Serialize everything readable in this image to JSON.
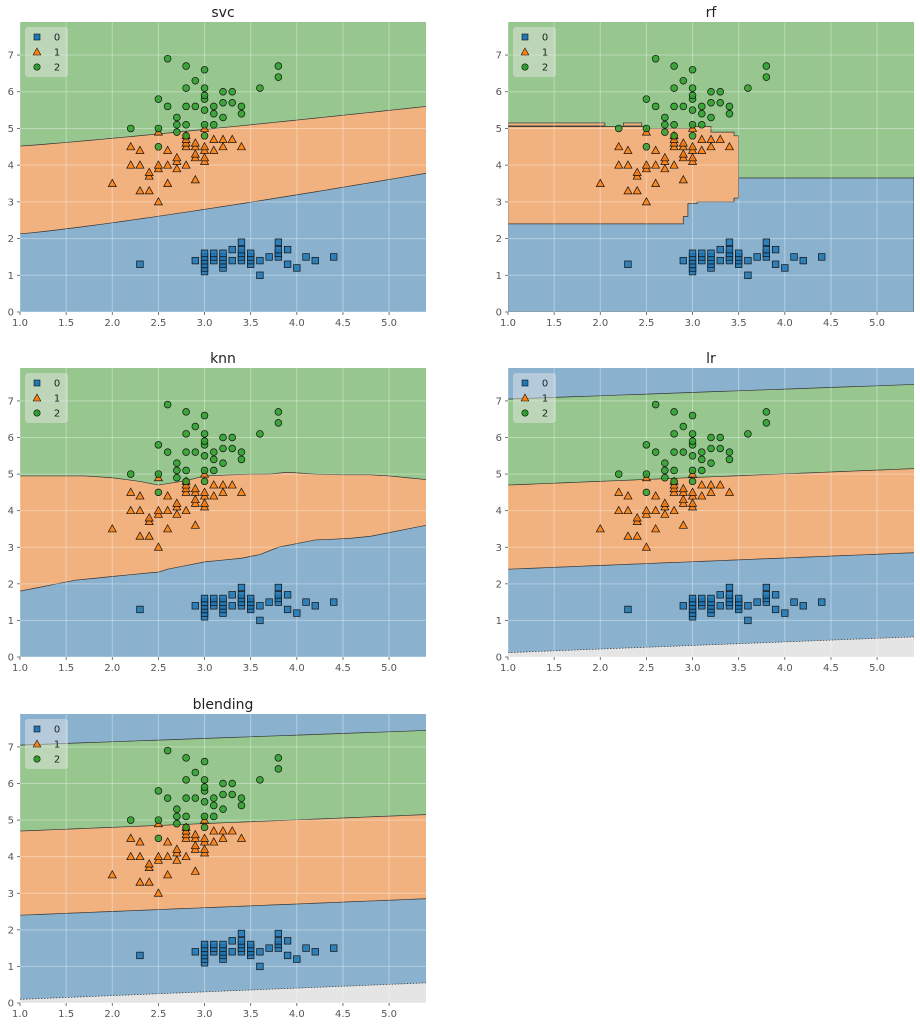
{
  "chart_data": {
    "type": "scatter",
    "description_free": true,
    "xlim": [
      1.0,
      5.4
    ],
    "ylim": [
      0,
      7.9
    ],
    "xticks": [
      1.0,
      1.5,
      2.0,
      2.5,
      3.0,
      3.5,
      4.0,
      4.5,
      5.0
    ],
    "xtick_labels": [
      "1.0",
      "1.5",
      "2.0",
      "2.5",
      "3.0",
      "3.5",
      "4.0",
      "4.5",
      "5.0"
    ],
    "yticks": [
      0,
      1,
      2,
      3,
      4,
      5,
      6,
      7
    ],
    "ytick_labels": [
      "0",
      "1",
      "2",
      "3",
      "4",
      "5",
      "6",
      "7"
    ],
    "legend": {
      "position": "top-left",
      "entries": [
        {
          "label": "0",
          "marker": "square"
        },
        {
          "label": "1",
          "marker": "triangle"
        },
        {
          "label": "2",
          "marker": "circle"
        }
      ]
    },
    "colors": {
      "class0": "#1f77b4",
      "class1": "#ff7f0e",
      "class2": "#2ca02c",
      "region0": "#8ab2cf",
      "region1": "#f1b27f",
      "region2": "#97c78e",
      "outside": "#e5e5e5"
    },
    "series": [
      {
        "name": "0",
        "points": [
          [
            2.3,
            1.3
          ],
          [
            2.9,
            1.4
          ],
          [
            3.0,
            1.1
          ],
          [
            3.0,
            1.2
          ],
          [
            3.0,
            1.3
          ],
          [
            3.0,
            1.4
          ],
          [
            3.0,
            1.5
          ],
          [
            3.0,
            1.6
          ],
          [
            3.1,
            1.4
          ],
          [
            3.1,
            1.5
          ],
          [
            3.1,
            1.6
          ],
          [
            3.2,
            1.2
          ],
          [
            3.2,
            1.3
          ],
          [
            3.2,
            1.4
          ],
          [
            3.2,
            1.5
          ],
          [
            3.2,
            1.6
          ],
          [
            3.3,
            1.4
          ],
          [
            3.3,
            1.7
          ],
          [
            3.4,
            1.4
          ],
          [
            3.4,
            1.5
          ],
          [
            3.4,
            1.6
          ],
          [
            3.4,
            1.7
          ],
          [
            3.4,
            1.9
          ],
          [
            3.5,
            1.3
          ],
          [
            3.5,
            1.4
          ],
          [
            3.5,
            1.5
          ],
          [
            3.5,
            1.6
          ],
          [
            3.6,
            1.0
          ],
          [
            3.6,
            1.4
          ],
          [
            3.7,
            1.5
          ],
          [
            3.8,
            1.5
          ],
          [
            3.8,
            1.6
          ],
          [
            3.8,
            1.7
          ],
          [
            3.8,
            1.9
          ],
          [
            3.9,
            1.3
          ],
          [
            3.9,
            1.7
          ],
          [
            4.0,
            1.2
          ],
          [
            4.1,
            1.5
          ],
          [
            4.2,
            1.4
          ],
          [
            4.4,
            1.5
          ]
        ]
      },
      {
        "name": "1",
        "points": [
          [
            2.0,
            3.5
          ],
          [
            2.2,
            4.0
          ],
          [
            2.2,
            4.5
          ],
          [
            2.3,
            3.3
          ],
          [
            2.3,
            4.0
          ],
          [
            2.3,
            4.4
          ],
          [
            2.4,
            3.3
          ],
          [
            2.4,
            3.7
          ],
          [
            2.4,
            3.8
          ],
          [
            2.5,
            3.0
          ],
          [
            2.5,
            3.9
          ],
          [
            2.5,
            4.0
          ],
          [
            2.5,
            4.9
          ],
          [
            2.6,
            3.5
          ],
          [
            2.6,
            4.0
          ],
          [
            2.6,
            4.4
          ],
          [
            2.7,
            3.9
          ],
          [
            2.7,
            4.1
          ],
          [
            2.7,
            4.2
          ],
          [
            2.8,
            4.0
          ],
          [
            2.8,
            4.5
          ],
          [
            2.8,
            4.6
          ],
          [
            2.8,
            4.7
          ],
          [
            2.8,
            4.8
          ],
          [
            2.9,
            3.6
          ],
          [
            2.9,
            4.2
          ],
          [
            2.9,
            4.3
          ],
          [
            2.9,
            4.5
          ],
          [
            2.9,
            4.6
          ],
          [
            3.0,
            4.1
          ],
          [
            3.0,
            4.2
          ],
          [
            3.0,
            4.4
          ],
          [
            3.0,
            4.5
          ],
          [
            3.0,
            5.0
          ],
          [
            3.1,
            4.4
          ],
          [
            3.1,
            4.7
          ],
          [
            3.2,
            4.5
          ],
          [
            3.2,
            4.7
          ],
          [
            3.3,
            4.7
          ],
          [
            3.4,
            4.5
          ]
        ]
      },
      {
        "name": "2",
        "points": [
          [
            2.2,
            5.0
          ],
          [
            2.5,
            4.5
          ],
          [
            2.5,
            5.0
          ],
          [
            2.5,
            5.8
          ],
          [
            2.6,
            5.6
          ],
          [
            2.6,
            6.9
          ],
          [
            2.7,
            4.9
          ],
          [
            2.7,
            5.1
          ],
          [
            2.7,
            5.3
          ],
          [
            2.8,
            4.8
          ],
          [
            2.8,
            5.1
          ],
          [
            2.8,
            5.6
          ],
          [
            2.8,
            6.1
          ],
          [
            2.8,
            6.7
          ],
          [
            2.9,
            5.6
          ],
          [
            2.9,
            6.3
          ],
          [
            3.0,
            4.8
          ],
          [
            3.0,
            5.1
          ],
          [
            3.0,
            5.5
          ],
          [
            3.0,
            5.8
          ],
          [
            3.0,
            5.9
          ],
          [
            3.0,
            6.1
          ],
          [
            3.0,
            6.6
          ],
          [
            3.1,
            5.1
          ],
          [
            3.1,
            5.4
          ],
          [
            3.1,
            5.6
          ],
          [
            3.2,
            5.3
          ],
          [
            3.2,
            5.7
          ],
          [
            3.2,
            6.0
          ],
          [
            3.3,
            5.7
          ],
          [
            3.3,
            6.0
          ],
          [
            3.4,
            5.4
          ],
          [
            3.4,
            5.6
          ],
          [
            3.6,
            6.1
          ],
          [
            3.8,
            6.4
          ],
          [
            3.8,
            6.7
          ]
        ]
      }
    ],
    "subplots": [
      {
        "title": "svc",
        "kind": "bands",
        "boundaries": [
          {
            "lower": "0",
            "upper": "1",
            "y_at_xmin": 2.13,
            "y_at_xmax": 3.78,
            "curve": 1.15
          },
          {
            "lower": "1",
            "upper": "2",
            "y_at_xmin": 4.52,
            "y_at_xmax": 5.6,
            "curve": 1.1
          }
        ]
      },
      {
        "title": "rf",
        "kind": "steps"
      },
      {
        "title": "knn",
        "kind": "curves",
        "boundaries": [
          {
            "lower": "0",
            "upper": "1",
            "x": [
              1.0,
              1.2,
              1.4,
              1.6,
              1.8,
              2.0,
              2.2,
              2.4,
              2.5,
              2.6,
              2.8,
              3.0,
              3.2,
              3.4,
              3.6,
              3.8,
              4.0,
              4.2,
              4.4,
              4.6,
              4.8,
              5.0,
              5.2,
              5.4
            ],
            "y": [
              1.8,
              1.9,
              2.0,
              2.1,
              2.15,
              2.2,
              2.25,
              2.3,
              2.32,
              2.4,
              2.5,
              2.6,
              2.65,
              2.7,
              2.8,
              3.0,
              3.1,
              3.2,
              3.22,
              3.25,
              3.3,
              3.4,
              3.5,
              3.6
            ]
          },
          {
            "lower": "1",
            "upper": "2",
            "x": [
              1.0,
              1.5,
              1.7,
              2.0,
              2.3,
              2.5,
              2.8,
              3.0,
              3.3,
              3.5,
              3.7,
              3.9,
              4.2,
              4.5,
              4.8,
              5.0,
              5.2,
              5.4
            ],
            "y": [
              4.95,
              4.95,
              4.95,
              4.9,
              4.8,
              4.7,
              4.82,
              4.95,
              4.98,
              5.0,
              5.0,
              5.05,
              5.0,
              4.98,
              4.98,
              4.95,
              4.9,
              4.85
            ]
          }
        ]
      },
      {
        "title": "lr",
        "kind": "bands",
        "boundaries": [
          {
            "lower": "outside",
            "upper": "0",
            "y_at_xmin": 0.12,
            "y_at_xmax": 0.55,
            "curve": 1.0
          },
          {
            "lower": "0",
            "upper": "1",
            "y_at_xmin": 2.4,
            "y_at_xmax": 2.85,
            "curve": 1.0
          },
          {
            "lower": "1",
            "upper": "2",
            "y_at_xmin": 4.7,
            "y_at_xmax": 5.15,
            "curve": 1.0
          },
          {
            "lower": "2",
            "upper": "0",
            "y_at_xmin": 7.05,
            "y_at_xmax": 7.45,
            "curve": 1.0
          }
        ]
      },
      {
        "title": "blending",
        "kind": "bands",
        "boundaries": [
          {
            "lower": "outside",
            "upper": "0",
            "y_at_xmin": 0.1,
            "y_at_xmax": 0.55,
            "curve": 1.0
          },
          {
            "lower": "0",
            "upper": "1",
            "y_at_xmin": 2.4,
            "y_at_xmax": 2.85,
            "curve": 1.0
          },
          {
            "lower": "1",
            "upper": "2",
            "y_at_xmin": 4.7,
            "y_at_xmax": 5.15,
            "curve": 1.0
          },
          {
            "lower": "2",
            "upper": "0",
            "y_at_xmin": 7.05,
            "y_at_xmax": 7.45,
            "curve": 1.0
          }
        ]
      }
    ]
  }
}
